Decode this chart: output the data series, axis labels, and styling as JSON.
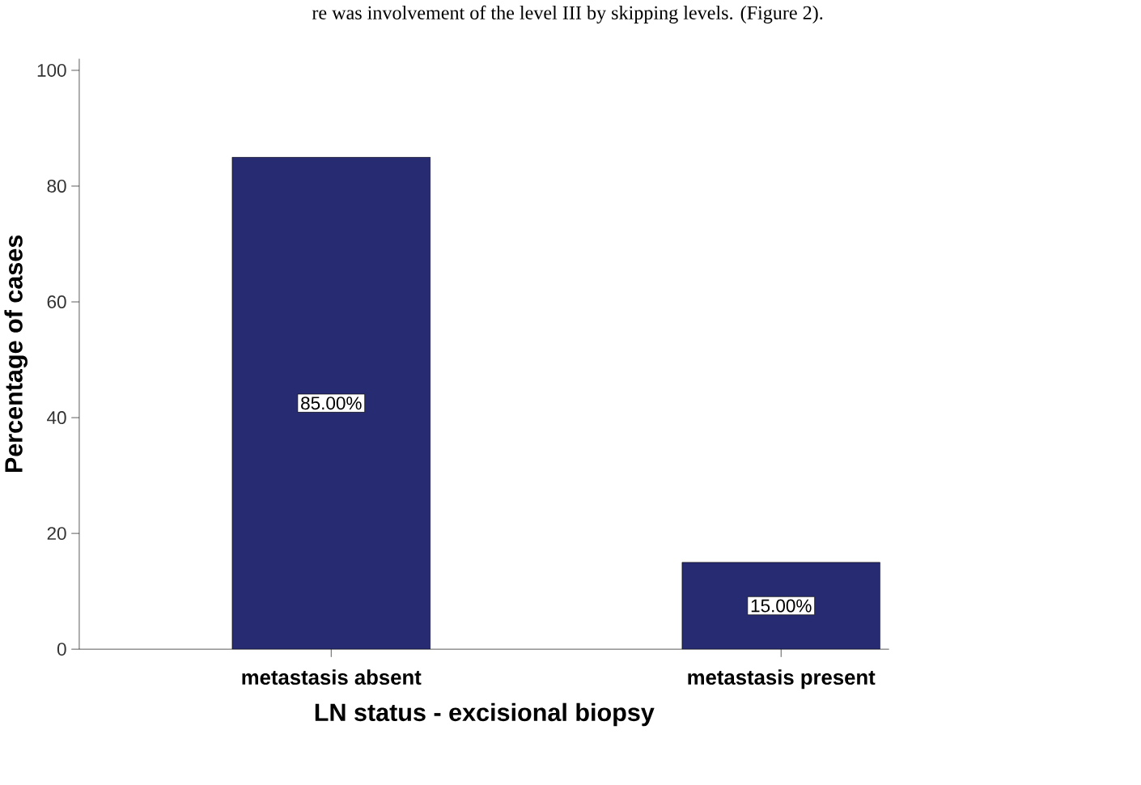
{
  "chart_data": {
    "type": "bar",
    "xlabel": "LN status - excisional biopsy",
    "ylabel": "Percentage of cases",
    "categories": [
      "metastasis absent",
      "metastasis present"
    ],
    "values": [
      85,
      15
    ],
    "value_labels": [
      "85.00%",
      "15.00%"
    ],
    "color": "#262b72",
    "ylim": [
      0,
      102
    ],
    "yticks": [
      0,
      20,
      40,
      60,
      80,
      100
    ],
    "grid": false,
    "annotations": [
      "re was involvement of the level III by skipping levels. (Figure 2)."
    ]
  }
}
